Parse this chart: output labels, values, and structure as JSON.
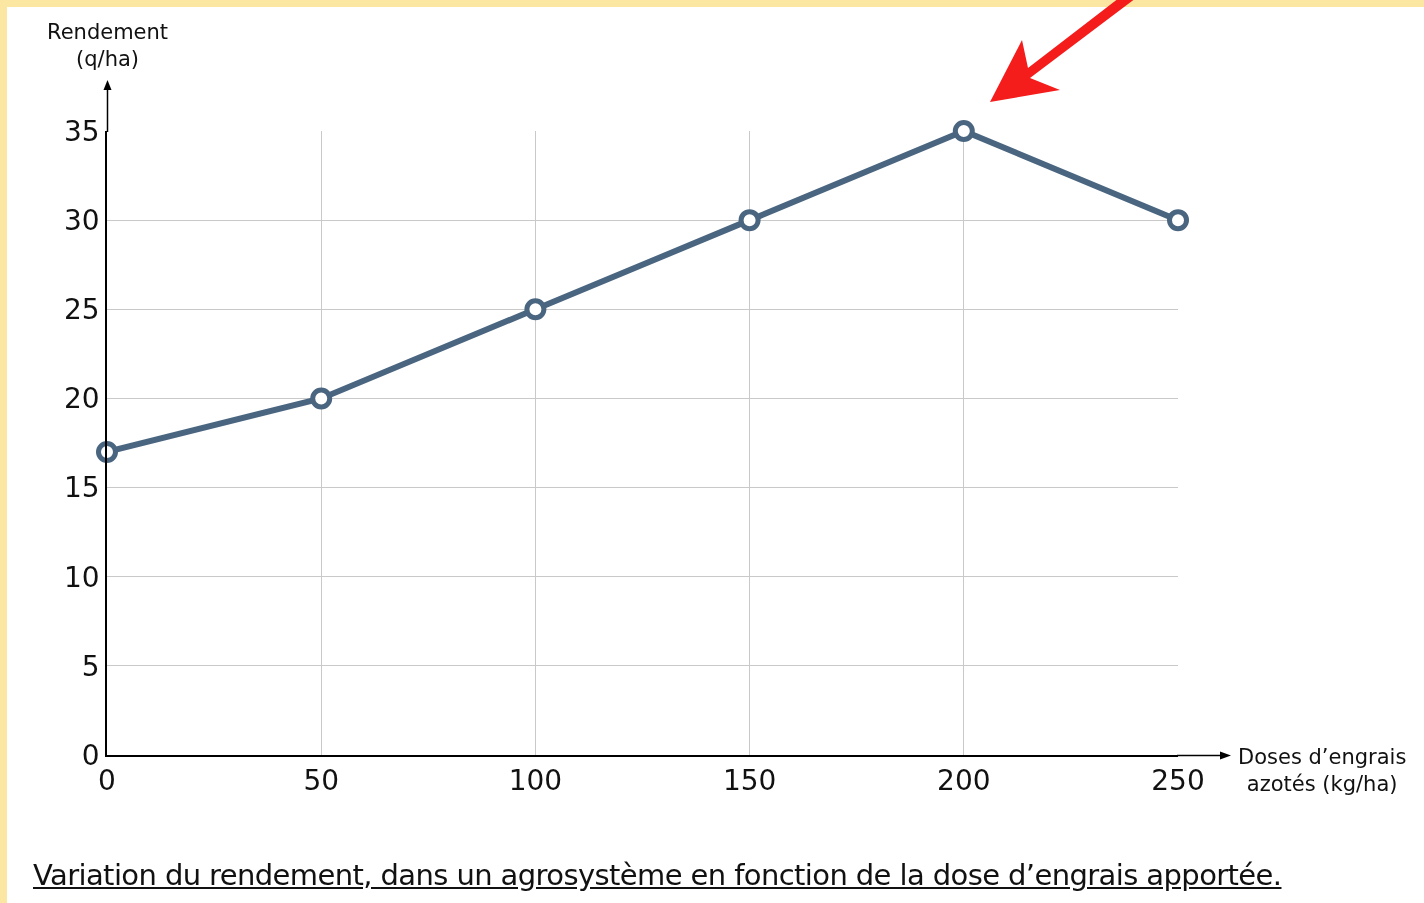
{
  "chart_data": {
    "type": "line",
    "xlabel": "Doses d’engrais\nazotés (kg/ha)",
    "ylabel": "Rendement\n(q/ha)",
    "x": [
      0,
      50,
      100,
      150,
      200,
      250
    ],
    "series": [
      {
        "color": "#4a6580",
        "values": [
          17,
          20,
          25,
          30,
          35,
          30
        ]
      }
    ],
    "xlim": [
      0,
      250
    ],
    "xticks": [
      0,
      50,
      100,
      150,
      200,
      250
    ],
    "ylim": [
      0,
      35
    ],
    "yticks": [
      0,
      5,
      10,
      15,
      20,
      25,
      30,
      35
    ],
    "grid": true,
    "marker": "circle",
    "line_style": "solid",
    "annotations": [
      "Variation du rendement, dans un agrosystème en fonction de la dose d’engrais apportée."
    ]
  }
}
